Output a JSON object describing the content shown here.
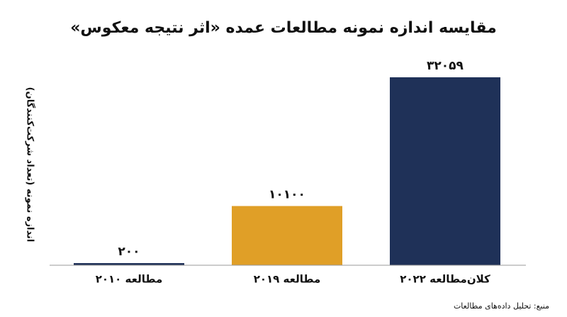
{
  "chart_data": {
    "type": "bar",
    "title": "مقایسه اندازه نمونه مطالعات عمده «اثر نتیجه معکوس»",
    "y_label": "اندازه نمونه (تعداد شرکت‌کنندگان)",
    "categories": [
      "مطالعه ۲۰۱۰",
      "مطالعه ۲۰۱۹",
      "کلان‌مطالعه ۲۰۲۲"
    ],
    "values": [
      200,
      10100,
      32059
    ],
    "value_labels": [
      "۲۰۰",
      "۱۰۱۰۰",
      "۳۲۰۵۹"
    ],
    "colors": [
      "#1f3158",
      "#e09f27",
      "#1f3158"
    ],
    "source": "منبع: تحلیل داده‌های مطالعات"
  }
}
